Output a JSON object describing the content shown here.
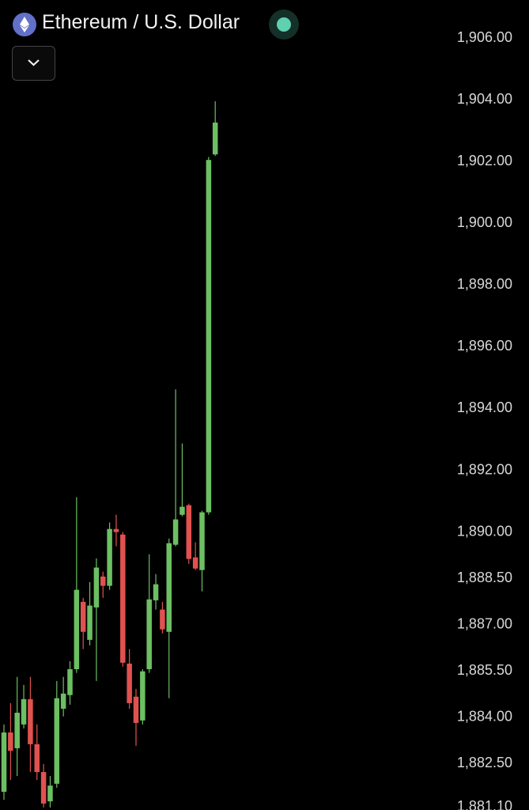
{
  "chart_data": {
    "type": "candlestick",
    "title": "Ethereum / U.S. Dollar",
    "up_color": "#6cbf62",
    "down_color": "#e0524f",
    "grid": false,
    "ylim": [
      1881.0,
      1907.23
    ],
    "yticks": [
      {
        "value": 1906.0,
        "label": "1,906.00"
      },
      {
        "value": 1904.0,
        "label": "1,904.00"
      },
      {
        "value": 1902.0,
        "label": "1,902.00"
      },
      {
        "value": 1900.0,
        "label": "1,900.00"
      },
      {
        "value": 1898.0,
        "label": "1,898.00"
      },
      {
        "value": 1896.0,
        "label": "1,896.00"
      },
      {
        "value": 1894.0,
        "label": "1,894.00"
      },
      {
        "value": 1892.0,
        "label": "1,892.00"
      },
      {
        "value": 1890.0,
        "label": "1,890.00"
      },
      {
        "value": 1888.5,
        "label": "1,888.50"
      },
      {
        "value": 1887.0,
        "label": "1,887.00"
      },
      {
        "value": 1885.5,
        "label": "1,885.50"
      },
      {
        "value": 1884.0,
        "label": "1,884.00"
      },
      {
        "value": 1882.5,
        "label": "1,882.50"
      },
      {
        "value": 1881.1,
        "label": "1,881.10"
      }
    ],
    "open": [
      1881.59,
      1883.51,
      1883.0,
      1883.77,
      1884.59,
      1883.13,
      1882.23,
      1881.28,
      1881.85,
      1884.28,
      1884.72,
      1885.56,
      1887.74,
      1886.51,
      1887.56,
      1888.56,
      1888.26,
      1890.1,
      1889.92,
      1885.74,
      1884.67,
      1883.9,
      1885.56,
      1887.79,
      1887.49,
      1886.77,
      1889.59,
      1890.56,
      1890.87,
      1889.18,
      1888.77,
      1890.64,
      1902.23
    ],
    "high": [
      1883.77,
      1884.46,
      1885.31,
      1885.05,
      1885.31,
      1883.77,
      1882.49,
      1882.1,
      1885.18,
      1885.31,
      1885.82,
      1891.13,
      1887.87,
      1888.38,
      1889.15,
      1888.72,
      1890.31,
      1890.56,
      1890.0,
      1886.21,
      1884.92,
      1885.56,
      1889.28,
      1888.64,
      1887.74,
      1889.79,
      1894.62,
      1892.87,
      1890.92,
      1889.67,
      1890.69,
      1902.15,
      1903.95
    ],
    "low": [
      1881.33,
      1881.97,
      1882.1,
      1883.64,
      1882.23,
      1881.97,
      1881.08,
      1881.08,
      1881.72,
      1884.03,
      1884.41,
      1885.44,
      1886.21,
      1886.33,
      1885.18,
      1887.87,
      1888.13,
      1889.54,
      1885.64,
      1884.28,
      1883.08,
      1883.77,
      1885.44,
      1887.49,
      1886.72,
      1884.62,
      1889.54,
      1890.51,
      1888.97,
      1888.77,
      1888.08,
      1890.56,
      1902.18
    ],
    "close": [
      1883.51,
      1882.92,
      1884.15,
      1884.59,
      1883.13,
      1882.23,
      1881.21,
      1881.79,
      1884.62,
      1884.77,
      1885.56,
      1888.13,
      1886.77,
      1887.62,
      1888.85,
      1888.26,
      1890.1,
      1890.0,
      1885.77,
      1884.46,
      1883.82,
      1885.49,
      1887.82,
      1888.31,
      1886.85,
      1889.64,
      1890.41,
      1890.82,
      1889.13,
      1888.82,
      1890.64,
      1902.05,
      1903.26
    ]
  }
}
